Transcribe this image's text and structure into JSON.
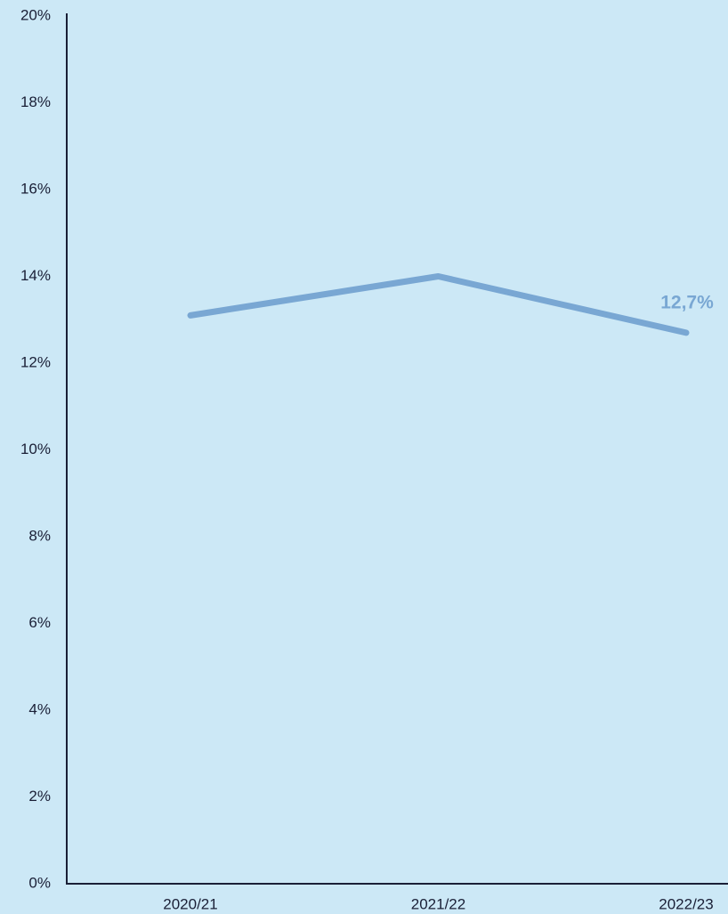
{
  "chart_data": {
    "type": "line",
    "categories": [
      "2020/21",
      "2021/22",
      "2022/23"
    ],
    "values": [
      13.1,
      14.0,
      12.7
    ],
    "value_labels": [
      null,
      null,
      "12,7%"
    ],
    "color": "#79a7d3",
    "ylim": [
      0,
      20
    ],
    "yticks": [
      {
        "value": 0,
        "label": "0%"
      },
      {
        "value": 2,
        "label": "2%"
      },
      {
        "value": 4,
        "label": "4%"
      },
      {
        "value": 6,
        "label": "6%"
      },
      {
        "value": 8,
        "label": "8%"
      },
      {
        "value": 10,
        "label": "10%"
      },
      {
        "value": 12,
        "label": "12%"
      },
      {
        "value": 14,
        "label": "14%"
      },
      {
        "value": 16,
        "label": "16%"
      },
      {
        "value": 18,
        "label": "18%"
      },
      {
        "value": 20,
        "label": "20%"
      }
    ],
    "grid": false
  }
}
